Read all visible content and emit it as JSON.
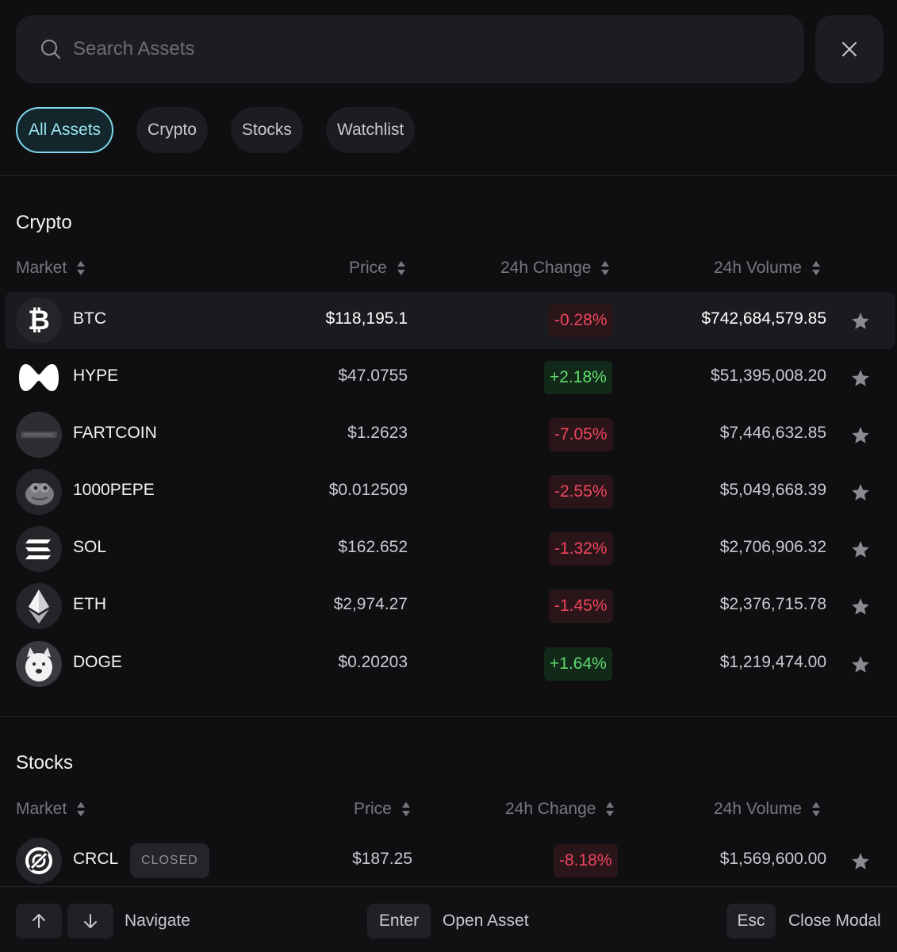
{
  "search": {
    "placeholder": "Search Assets"
  },
  "tabs": [
    {
      "label": "All Assets",
      "active": true
    },
    {
      "label": "Crypto",
      "active": false
    },
    {
      "label": "Stocks",
      "active": false
    },
    {
      "label": "Watchlist",
      "active": false
    }
  ],
  "crypto": {
    "title": "Crypto",
    "columns": {
      "market": "Market",
      "price": "Price",
      "change": "24h Change",
      "volume": "24h Volume"
    },
    "rows": [
      {
        "symbol": "BTC",
        "icon": "bitcoin-icon",
        "price": "$118,195.1",
        "change": "-0.28%",
        "direction": "down",
        "volume": "$742,684,579.85",
        "selected": true
      },
      {
        "symbol": "HYPE",
        "icon": "hype-logo-icon",
        "price": "$47.0755",
        "change": "+2.18%",
        "direction": "up",
        "volume": "$51,395,008.20"
      },
      {
        "symbol": "FARTCOIN",
        "icon": "fartcoin-logo-icon",
        "price": "$1.2623",
        "change": "-7.05%",
        "direction": "down",
        "volume": "$7,446,632.85"
      },
      {
        "symbol": "1000PEPE",
        "icon": "pepe-frog-icon",
        "price": "$0.012509",
        "change": "-2.55%",
        "direction": "down",
        "volume": "$5,049,668.39"
      },
      {
        "symbol": "SOL",
        "icon": "solana-icon",
        "price": "$162.652",
        "change": "-1.32%",
        "direction": "down",
        "volume": "$2,706,906.32"
      },
      {
        "symbol": "ETH",
        "icon": "ethereum-icon",
        "price": "$2,974.27",
        "change": "-1.45%",
        "direction": "down",
        "volume": "$2,376,715.78"
      },
      {
        "symbol": "DOGE",
        "icon": "doge-dog-icon",
        "price": "$0.20203",
        "change": "+1.64%",
        "direction": "up",
        "volume": "$1,219,474.00"
      }
    ]
  },
  "stocks": {
    "title": "Stocks",
    "columns": {
      "market": "Market",
      "price": "Price",
      "change": "24h Change",
      "volume": "24h Volume"
    },
    "rows": [
      {
        "symbol": "CRCL",
        "icon": "circle-logo-icon",
        "badge": "CLOSED",
        "price": "$187.25",
        "change": "-8.18%",
        "direction": "down",
        "volume": "$1,569,600.00"
      }
    ]
  },
  "footer": {
    "navigate": "Navigate",
    "enter_key": "Enter",
    "open_asset": "Open Asset",
    "esc_key": "Esc",
    "close_modal": "Close Modal"
  },
  "colors": {
    "negative": "#f0455d",
    "positive": "#5fdb6a",
    "accent": "#7dd6ea",
    "star": "#8a8a90"
  }
}
